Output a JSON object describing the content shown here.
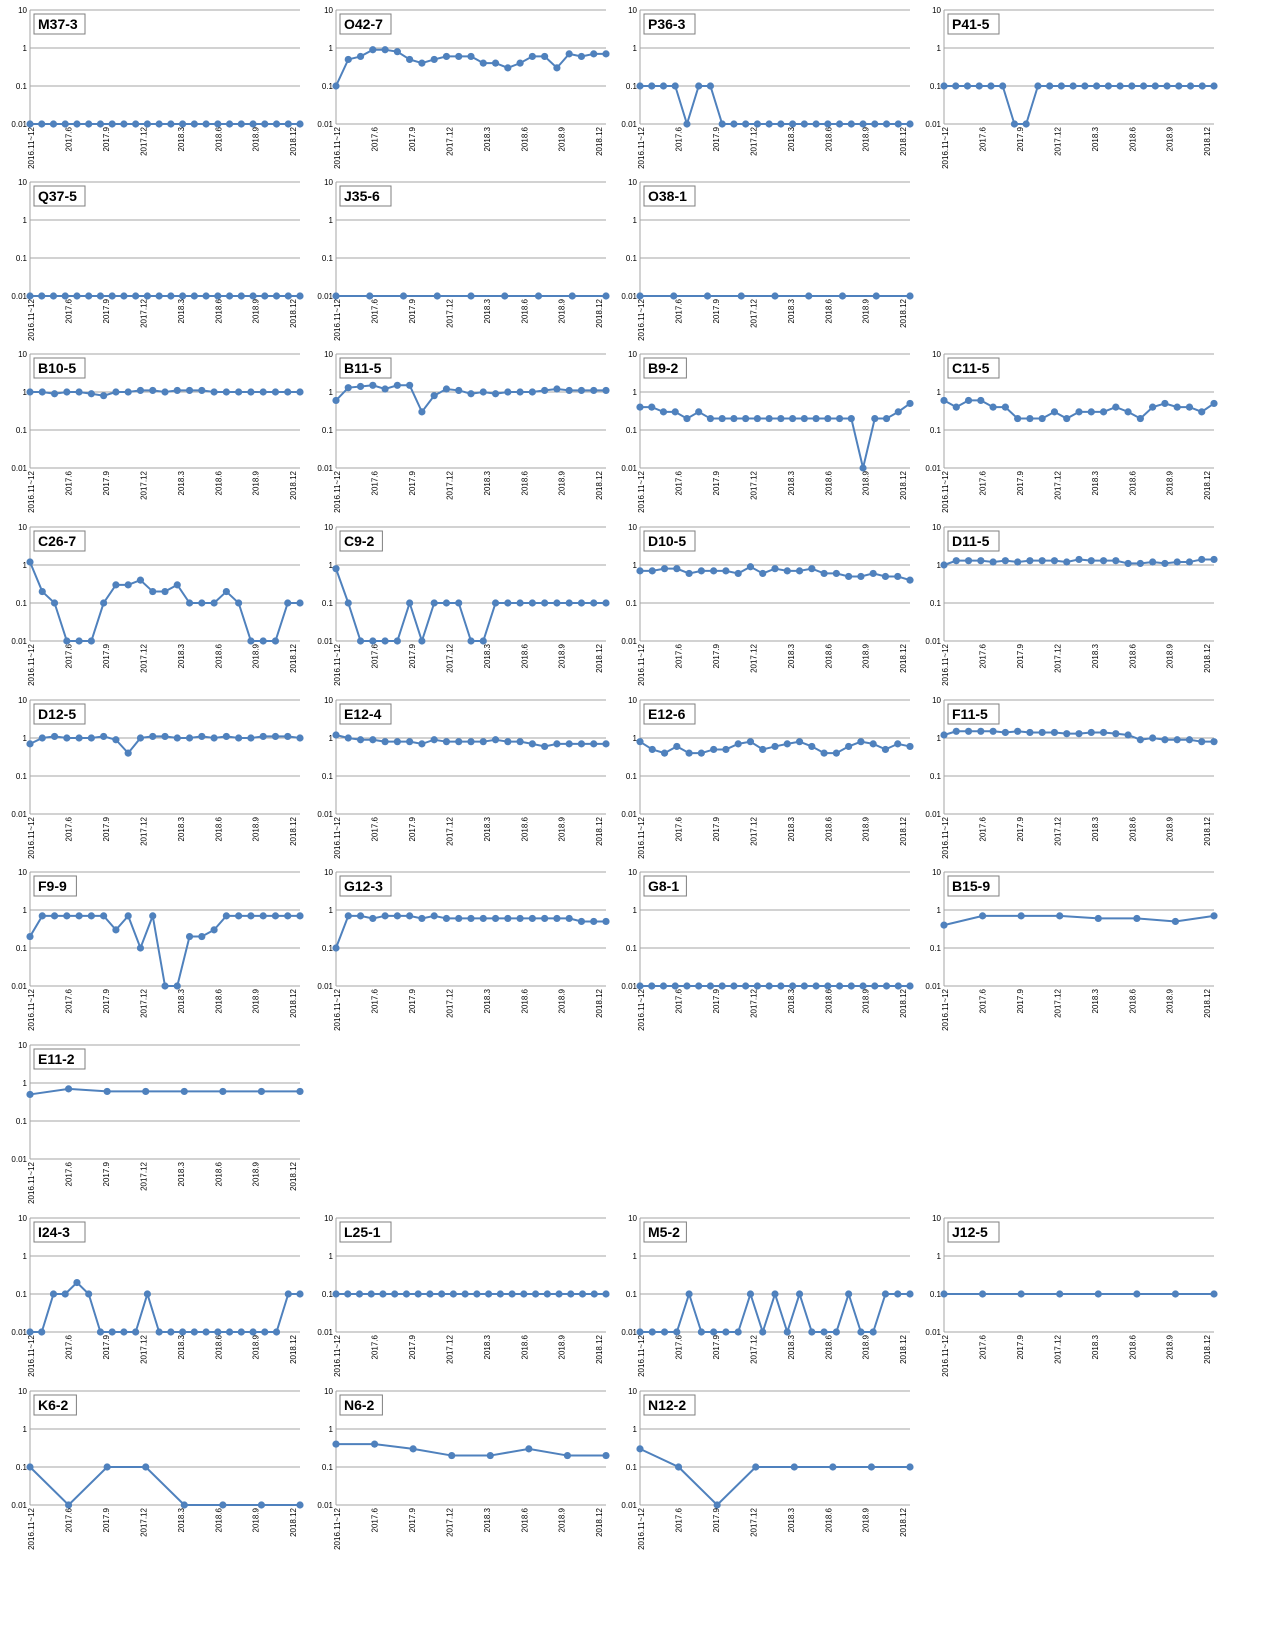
{
  "style": {
    "line_color": "#4f81bd",
    "marker_color": "#4f81bd",
    "grid_color": "#a6a6a6",
    "text_color": "#000000"
  },
  "axis": {
    "type": "log",
    "ylim": [
      0.01,
      10
    ],
    "yticks": [
      "10",
      "1",
      "0.1",
      "0.01"
    ],
    "xticks": [
      "2016.11~12",
      "2017.6",
      "2017.9",
      "2017.12",
      "2018.3",
      "2018.6",
      "2018.9",
      "2018.12"
    ],
    "grid": "horizontal"
  },
  "chart_data": [
    {
      "type": "line",
      "title": "M37-3",
      "series": [
        {
          "values": [
            0.01,
            0.01,
            0.01,
            0.01,
            0.01,
            0.01,
            0.01,
            0.01,
            0.01,
            0.01,
            0.01,
            0.01,
            0.01,
            0.01,
            0.01,
            0.01,
            0.01,
            0.01,
            0.01,
            0.01,
            0.01,
            0.01,
            0.01,
            0.01
          ]
        }
      ]
    },
    {
      "type": "line",
      "title": "O42-7",
      "series": [
        {
          "values": [
            0.1,
            0.5,
            0.6,
            0.9,
            0.9,
            0.8,
            0.5,
            0.4,
            0.5,
            0.6,
            0.6,
            0.6,
            0.4,
            0.4,
            0.3,
            0.4,
            0.6,
            0.6,
            0.3,
            0.7,
            0.6,
            0.7,
            0.7
          ]
        }
      ]
    },
    {
      "type": "line",
      "title": "P36-3",
      "series": [
        {
          "values": [
            0.1,
            0.1,
            0.1,
            0.1,
            0.01,
            0.1,
            0.1,
            0.01,
            0.01,
            0.01,
            0.01,
            0.01,
            0.01,
            0.01,
            0.01,
            0.01,
            0.01,
            0.01,
            0.01,
            0.01,
            0.01,
            0.01,
            0.01,
            0.01
          ]
        }
      ]
    },
    {
      "type": "line",
      "title": "P41-5",
      "series": [
        {
          "values": [
            0.1,
            0.1,
            0.1,
            0.1,
            0.1,
            0.1,
            0.01,
            0.01,
            0.1,
            0.1,
            0.1,
            0.1,
            0.1,
            0.1,
            0.1,
            0.1,
            0.1,
            0.1,
            0.1,
            0.1,
            0.1,
            0.1,
            0.1,
            0.1
          ]
        }
      ]
    },
    {
      "type": "line",
      "title": "Q37-5",
      "series": [
        {
          "values": [
            0.01,
            0.01,
            0.01,
            0.01,
            0.01,
            0.01,
            0.01,
            0.01,
            0.01,
            0.01,
            0.01,
            0.01,
            0.01,
            0.01,
            0.01,
            0.01,
            0.01,
            0.01,
            0.01,
            0.01,
            0.01,
            0.01,
            0.01,
            0.01
          ]
        }
      ]
    },
    {
      "type": "line",
      "title": "J35-6",
      "series": [
        {
          "values": [
            0.01,
            0.01,
            0.01,
            0.01,
            0.01,
            0.01,
            0.01,
            0.01,
            0.01
          ]
        }
      ]
    },
    {
      "type": "line",
      "title": "O38-1",
      "series": [
        {
          "values": [
            0.01,
            0.01,
            0.01,
            0.01,
            0.01,
            0.01,
            0.01,
            0.01,
            0.01
          ]
        }
      ]
    },
    null,
    {
      "type": "line",
      "title": "B10-5",
      "series": [
        {
          "values": [
            1.0,
            1.0,
            0.9,
            1.0,
            1.0,
            0.9,
            0.8,
            1.0,
            1.0,
            1.1,
            1.1,
            1.0,
            1.1,
            1.1,
            1.1,
            1.0,
            1.0,
            1.0,
            1.0,
            1.0,
            1.0,
            1.0,
            1.0
          ]
        }
      ]
    },
    {
      "type": "line",
      "title": "B11-5",
      "series": [
        {
          "values": [
            0.6,
            1.3,
            1.4,
            1.5,
            1.2,
            1.5,
            1.5,
            0.3,
            0.8,
            1.2,
            1.1,
            0.9,
            1.0,
            0.9,
            1.0,
            1.0,
            1.0,
            1.1,
            1.2,
            1.1,
            1.1,
            1.1,
            1.1
          ]
        }
      ]
    },
    {
      "type": "line",
      "title": "B9-2",
      "series": [
        {
          "values": [
            0.4,
            0.4,
            0.3,
            0.3,
            0.2,
            0.3,
            0.2,
            0.2,
            0.2,
            0.2,
            0.2,
            0.2,
            0.2,
            0.2,
            0.2,
            0.2,
            0.2,
            0.2,
            0.2,
            0.01,
            0.2,
            0.2,
            0.3,
            0.5
          ]
        }
      ]
    },
    {
      "type": "line",
      "title": "C11-5",
      "series": [
        {
          "values": [
            0.6,
            0.4,
            0.6,
            0.6,
            0.4,
            0.4,
            0.2,
            0.2,
            0.2,
            0.3,
            0.2,
            0.3,
            0.3,
            0.3,
            0.4,
            0.3,
            0.2,
            0.4,
            0.5,
            0.4,
            0.4,
            0.3,
            0.5
          ]
        }
      ]
    },
    {
      "type": "line",
      "title": "C26-7",
      "series": [
        {
          "values": [
            1.2,
            0.2,
            0.1,
            0.01,
            0.01,
            0.01,
            0.1,
            0.3,
            0.3,
            0.4,
            0.2,
            0.2,
            0.3,
            0.1,
            0.1,
            0.1,
            0.2,
            0.1,
            0.01,
            0.01,
            0.01,
            0.1,
            0.1
          ]
        }
      ]
    },
    {
      "type": "line",
      "title": "C9-2",
      "series": [
        {
          "values": [
            0.8,
            0.1,
            0.01,
            0.01,
            0.01,
            0.01,
            0.1,
            0.01,
            0.1,
            0.1,
            0.1,
            0.01,
            0.01,
            0.1,
            0.1,
            0.1,
            0.1,
            0.1,
            0.1,
            0.1,
            0.1,
            0.1,
            0.1
          ]
        }
      ]
    },
    {
      "type": "line",
      "title": "D10-5",
      "series": [
        {
          "values": [
            0.7,
            0.7,
            0.8,
            0.8,
            0.6,
            0.7,
            0.7,
            0.7,
            0.6,
            0.9,
            0.6,
            0.8,
            0.7,
            0.7,
            0.8,
            0.6,
            0.6,
            0.5,
            0.5,
            0.6,
            0.5,
            0.5,
            0.4
          ]
        }
      ]
    },
    {
      "type": "line",
      "title": "D11-5",
      "series": [
        {
          "values": [
            1.0,
            1.3,
            1.3,
            1.3,
            1.2,
            1.3,
            1.2,
            1.3,
            1.3,
            1.3,
            1.2,
            1.4,
            1.3,
            1.3,
            1.3,
            1.1,
            1.1,
            1.2,
            1.1,
            1.2,
            1.2,
            1.4,
            1.4
          ]
        }
      ]
    },
    {
      "type": "line",
      "title": "D12-5",
      "series": [
        {
          "values": [
            0.7,
            1.0,
            1.1,
            1.0,
            1.0,
            1.0,
            1.1,
            0.9,
            0.4,
            1.0,
            1.1,
            1.1,
            1.0,
            1.0,
            1.1,
            1.0,
            1.1,
            1.0,
            1.0,
            1.1,
            1.1,
            1.1,
            1.0
          ]
        }
      ]
    },
    {
      "type": "line",
      "title": "E12-4",
      "series": [
        {
          "values": [
            1.2,
            1.0,
            0.9,
            0.9,
            0.8,
            0.8,
            0.8,
            0.7,
            0.9,
            0.8,
            0.8,
            0.8,
            0.8,
            0.9,
            0.8,
            0.8,
            0.7,
            0.6,
            0.7,
            0.7,
            0.7,
            0.7,
            0.7
          ]
        }
      ]
    },
    {
      "type": "line",
      "title": "E12-6",
      "series": [
        {
          "values": [
            0.8,
            0.5,
            0.4,
            0.6,
            0.4,
            0.4,
            0.5,
            0.5,
            0.7,
            0.8,
            0.5,
            0.6,
            0.7,
            0.8,
            0.6,
            0.4,
            0.4,
            0.6,
            0.8,
            0.7,
            0.5,
            0.7,
            0.6
          ]
        }
      ]
    },
    {
      "type": "line",
      "title": "F11-5",
      "series": [
        {
          "values": [
            1.2,
            1.5,
            1.5,
            1.5,
            1.5,
            1.4,
            1.5,
            1.4,
            1.4,
            1.4,
            1.3,
            1.3,
            1.4,
            1.4,
            1.3,
            1.2,
            0.9,
            1.0,
            0.9,
            0.9,
            0.9,
            0.8,
            0.8
          ]
        }
      ]
    },
    {
      "type": "line",
      "title": "F9-9",
      "series": [
        {
          "values": [
            0.2,
            0.7,
            0.7,
            0.7,
            0.7,
            0.7,
            0.7,
            0.3,
            0.7,
            0.1,
            0.7,
            0.01,
            0.01,
            0.2,
            0.2,
            0.3,
            0.7,
            0.7,
            0.7,
            0.7,
            0.7,
            0.7,
            0.7
          ]
        }
      ]
    },
    {
      "type": "line",
      "title": "G12-3",
      "series": [
        {
          "values": [
            0.1,
            0.7,
            0.7,
            0.6,
            0.7,
            0.7,
            0.7,
            0.6,
            0.7,
            0.6,
            0.6,
            0.6,
            0.6,
            0.6,
            0.6,
            0.6,
            0.6,
            0.6,
            0.6,
            0.6,
            0.5,
            0.5,
            0.5
          ]
        }
      ]
    },
    {
      "type": "line",
      "title": "G8-1",
      "series": [
        {
          "values": [
            0.01,
            0.01,
            0.01,
            0.01,
            0.01,
            0.01,
            0.01,
            0.01,
            0.01,
            0.01,
            0.01,
            0.01,
            0.01,
            0.01,
            0.01,
            0.01,
            0.01,
            0.01,
            0.01,
            0.01,
            0.01,
            0.01,
            0.01,
            0.01
          ]
        }
      ]
    },
    {
      "type": "line",
      "title": "B15-9",
      "series": [
        {
          "values": [
            0.4,
            0.7,
            0.7,
            0.7,
            0.6,
            0.6,
            0.5,
            0.7
          ]
        }
      ]
    },
    {
      "type": "line",
      "title": "E11-2",
      "series": [
        {
          "values": [
            0.5,
            0.7,
            0.6,
            0.6,
            0.6,
            0.6,
            0.6,
            0.6
          ]
        }
      ]
    },
    null,
    null,
    null,
    {
      "type": "line",
      "title": "I24-3",
      "series": [
        {
          "values": [
            0.01,
            0.01,
            0.1,
            0.1,
            0.2,
            0.1,
            0.01,
            0.01,
            0.01,
            0.01,
            0.1,
            0.01,
            0.01,
            0.01,
            0.01,
            0.01,
            0.01,
            0.01,
            0.01,
            0.01,
            0.01,
            0.01,
            0.1,
            0.1
          ]
        }
      ]
    },
    {
      "type": "line",
      "title": "L25-1",
      "series": [
        {
          "values": [
            0.1,
            0.1,
            0.1,
            0.1,
            0.1,
            0.1,
            0.1,
            0.1,
            0.1,
            0.1,
            0.1,
            0.1,
            0.1,
            0.1,
            0.1,
            0.1,
            0.1,
            0.1,
            0.1,
            0.1,
            0.1,
            0.1,
            0.1,
            0.1
          ]
        }
      ]
    },
    {
      "type": "line",
      "title": "M5-2",
      "series": [
        {
          "values": [
            0.01,
            0.01,
            0.01,
            0.01,
            0.1,
            0.01,
            0.01,
            0.01,
            0.01,
            0.1,
            0.01,
            0.1,
            0.01,
            0.1,
            0.01,
            0.01,
            0.01,
            0.1,
            0.01,
            0.01,
            0.1,
            0.1,
            0.1
          ]
        }
      ]
    },
    {
      "type": "line",
      "title": "J12-5",
      "series": [
        {
          "values": [
            0.1,
            0.1,
            0.1,
            0.1,
            0.1,
            0.1,
            0.1,
            0.1
          ]
        }
      ]
    },
    {
      "type": "line",
      "title": "K6-2",
      "series": [
        {
          "values": [
            0.1,
            0.01,
            0.1,
            0.1,
            0.01,
            0.01,
            0.01,
            0.01
          ]
        }
      ]
    },
    {
      "type": "line",
      "title": "N6-2",
      "series": [
        {
          "values": [
            0.4,
            0.4,
            0.3,
            0.2,
            0.2,
            0.3,
            0.2,
            0.2
          ]
        }
      ]
    },
    {
      "type": "line",
      "title": "N12-2",
      "series": [
        {
          "values": [
            0.3,
            0.1,
            0.01,
            0.1,
            0.1,
            0.1,
            0.1,
            0.1
          ]
        }
      ]
    },
    null
  ]
}
